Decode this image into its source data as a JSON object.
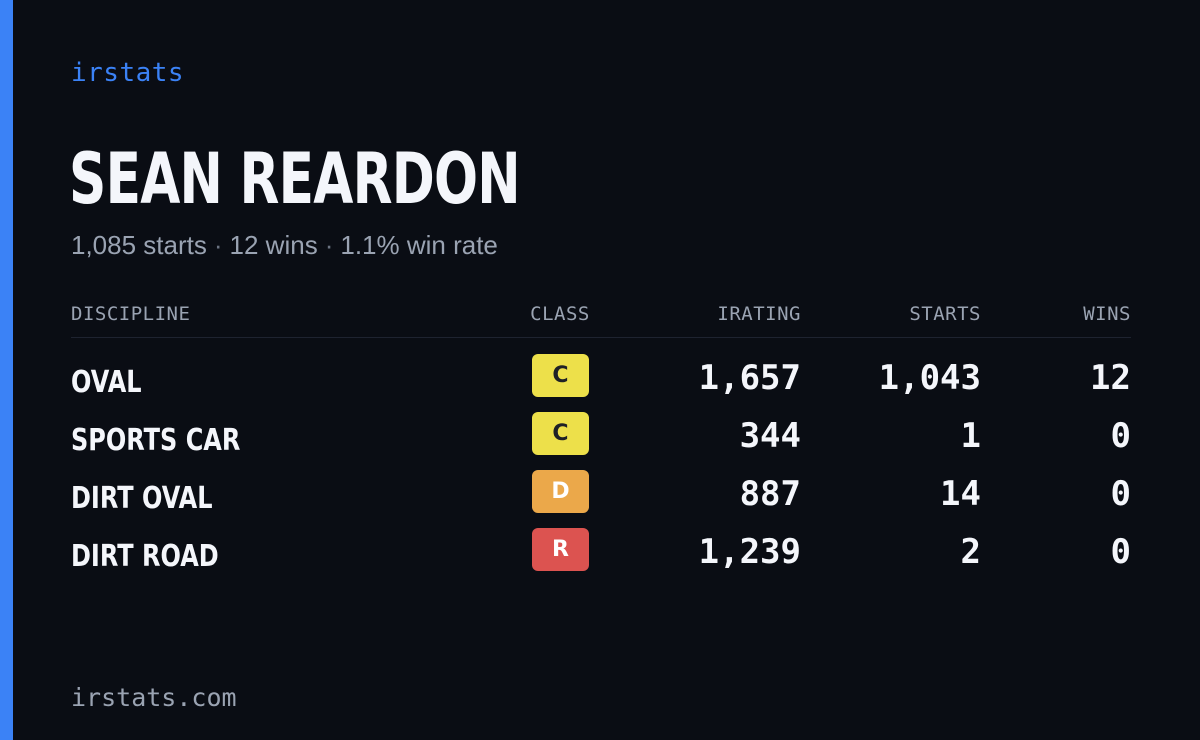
{
  "brand": "irstats",
  "driver": {
    "name": "SEAN REARDON",
    "starts_summary": "1,085 starts",
    "wins_summary": "12 wins",
    "win_rate_summary": "1.1% win rate",
    "separator": "·"
  },
  "table": {
    "headers": {
      "discipline": "DISCIPLINE",
      "class": "CLASS",
      "irating": "IRATING",
      "starts": "STARTS",
      "wins": "WINS"
    },
    "rows": [
      {
        "discipline": "OVAL",
        "class": "C",
        "class_color": "#ede04a",
        "class_text_color": "#1f2126",
        "irating": "1,657",
        "starts": "1,043",
        "wins": "12"
      },
      {
        "discipline": "SPORTS CAR",
        "class": "C",
        "class_color": "#ede04a",
        "class_text_color": "#1f2126",
        "irating": "344",
        "starts": "1",
        "wins": "0"
      },
      {
        "discipline": "DIRT OVAL",
        "class": "D",
        "class_color": "#eba84a",
        "class_text_color": "#ffffff",
        "irating": "887",
        "starts": "14",
        "wins": "0"
      },
      {
        "discipline": "DIRT ROAD",
        "class": "R",
        "class_color": "#dc5350",
        "class_text_color": "#ffffff",
        "irating": "1,239",
        "starts": "2",
        "wins": "0"
      }
    ]
  },
  "footer": "irstats.com",
  "colors": {
    "background": "#0a0d14",
    "accent": "#3b82f6",
    "text_primary": "#f4f6fb",
    "text_muted": "#9aa3b2"
  }
}
